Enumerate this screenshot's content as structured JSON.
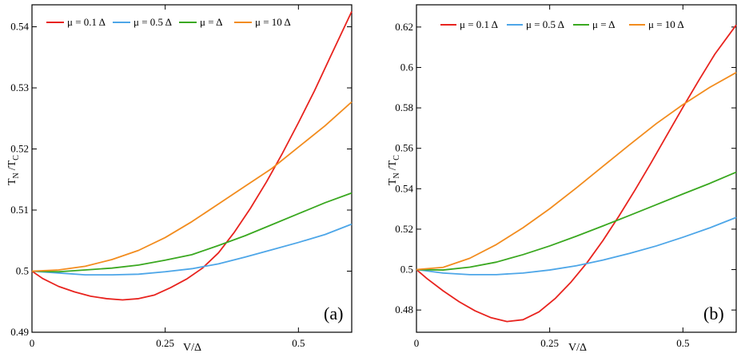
{
  "chart_data": [
    {
      "type": "line",
      "panel_label": "(a)",
      "xlabel": "V/Δ",
      "ylabel": {
        "main": "T",
        "sub1": "N",
        "mid": "/T",
        "sub2": "C"
      },
      "xlim": [
        0,
        0.6
      ],
      "ylim": [
        0.49,
        0.5436
      ],
      "xticks": [
        0,
        0.25,
        0.5
      ],
      "xtick_labels": [
        "0",
        "0.25",
        "0.5"
      ],
      "yticks": [
        0.49,
        0.5,
        0.51,
        0.52,
        0.53,
        0.54
      ],
      "ytick_labels": [
        "0.49",
        "0.5",
        "0.51",
        "0.52",
        "0.53",
        "0.54"
      ],
      "legend_position": "top-left",
      "series": [
        {
          "name": "μ = 0.1 Δ",
          "color": "#e8231e",
          "x": [
            0,
            0.02,
            0.05,
            0.08,
            0.11,
            0.14,
            0.17,
            0.2,
            0.23,
            0.26,
            0.29,
            0.32,
            0.35,
            0.38,
            0.41,
            0.44,
            0.47,
            0.5,
            0.53,
            0.56,
            0.6
          ],
          "y": [
            0.5,
            0.4988,
            0.4975,
            0.4966,
            0.4959,
            0.4955,
            0.4953,
            0.4955,
            0.4961,
            0.4973,
            0.4987,
            0.5005,
            0.503,
            0.5064,
            0.5103,
            0.5146,
            0.5193,
            0.5243,
            0.5295,
            0.5351,
            0.5425
          ]
        },
        {
          "name": "μ = 0.5 Δ",
          "color": "#4da6e8",
          "x": [
            0,
            0.05,
            0.1,
            0.15,
            0.2,
            0.25,
            0.3,
            0.35,
            0.4,
            0.45,
            0.5,
            0.55,
            0.6
          ],
          "y": [
            0.5,
            0.4997,
            0.4994,
            0.4994,
            0.4995,
            0.4999,
            0.5004,
            0.5012,
            0.5023,
            0.5035,
            0.5047,
            0.506,
            0.5077
          ]
        },
        {
          "name": "μ =  Δ",
          "color": "#3aa820",
          "x": [
            0,
            0.05,
            0.1,
            0.15,
            0.2,
            0.25,
            0.3,
            0.35,
            0.4,
            0.45,
            0.5,
            0.55,
            0.6
          ],
          "y": [
            0.5,
            0.4999,
            0.5002,
            0.5005,
            0.501,
            0.5018,
            0.5027,
            0.5042,
            0.5058,
            0.5076,
            0.5094,
            0.5112,
            0.5128
          ]
        },
        {
          "name": "μ = 10 Δ",
          "color": "#f28c1e",
          "x": [
            0,
            0.05,
            0.1,
            0.15,
            0.2,
            0.25,
            0.3,
            0.35,
            0.4,
            0.45,
            0.5,
            0.55,
            0.6
          ],
          "y": [
            0.5,
            0.5002,
            0.5008,
            0.5019,
            0.5034,
            0.5055,
            0.5081,
            0.511,
            0.5139,
            0.5168,
            0.5203,
            0.5238,
            0.5277
          ]
        }
      ]
    },
    {
      "type": "line",
      "panel_label": "(b)",
      "xlabel": "V/Δ",
      "ylabel": {
        "main": "T",
        "sub1": "N",
        "mid": "/T",
        "sub2": "C"
      },
      "xlim": [
        0,
        0.6
      ],
      "ylim": [
        0.469,
        0.631
      ],
      "xticks": [
        0,
        0.25,
        0.5
      ],
      "xtick_labels": [
        "0",
        "0.25",
        "0.5"
      ],
      "yticks": [
        0.48,
        0.5,
        0.52,
        0.54,
        0.56,
        0.58,
        0.6,
        0.62
      ],
      "ytick_labels": [
        "0.48",
        "0.5",
        "0.52",
        "0.54",
        "0.56",
        "0.58",
        "0.6",
        "0.62"
      ],
      "legend_position": "top-left",
      "series": [
        {
          "name": "μ = 0.1 Δ",
          "color": "#e8231e",
          "x": [
            0,
            0.02,
            0.05,
            0.08,
            0.11,
            0.14,
            0.17,
            0.2,
            0.23,
            0.26,
            0.29,
            0.32,
            0.35,
            0.38,
            0.41,
            0.44,
            0.47,
            0.5,
            0.53,
            0.56,
            0.6
          ],
          "y": [
            0.5,
            0.4955,
            0.4895,
            0.4841,
            0.4796,
            0.4762,
            0.4743,
            0.4752,
            0.4791,
            0.4856,
            0.4938,
            0.5034,
            0.5144,
            0.5265,
            0.5393,
            0.5527,
            0.5665,
            0.5803,
            0.5937,
            0.6066,
            0.621
          ]
        },
        {
          "name": "μ = 0.5 Δ",
          "color": "#4da6e8",
          "x": [
            0,
            0.05,
            0.1,
            0.15,
            0.2,
            0.25,
            0.3,
            0.35,
            0.4,
            0.45,
            0.5,
            0.55,
            0.6
          ],
          "y": [
            0.5,
            0.4983,
            0.4975,
            0.4975,
            0.4983,
            0.4998,
            0.5019,
            0.5047,
            0.508,
            0.5117,
            0.516,
            0.5206,
            0.5258
          ]
        },
        {
          "name": "μ =  Δ",
          "color": "#3aa820",
          "x": [
            0,
            0.05,
            0.1,
            0.15,
            0.2,
            0.25,
            0.3,
            0.35,
            0.4,
            0.45,
            0.5,
            0.55,
            0.6
          ],
          "y": [
            0.5,
            0.4998,
            0.5012,
            0.5037,
            0.5074,
            0.5117,
            0.5165,
            0.5216,
            0.5268,
            0.5321,
            0.5374,
            0.5426,
            0.5482
          ]
        },
        {
          "name": "μ = 10 Δ",
          "color": "#f28c1e",
          "x": [
            0,
            0.05,
            0.1,
            0.15,
            0.2,
            0.25,
            0.3,
            0.35,
            0.4,
            0.45,
            0.5,
            0.55,
            0.6
          ],
          "y": [
            0.5,
            0.5011,
            0.5056,
            0.5124,
            0.5207,
            0.5301,
            0.5404,
            0.5511,
            0.5618,
            0.5722,
            0.5816,
            0.5901,
            0.5975
          ]
        }
      ]
    }
  ]
}
